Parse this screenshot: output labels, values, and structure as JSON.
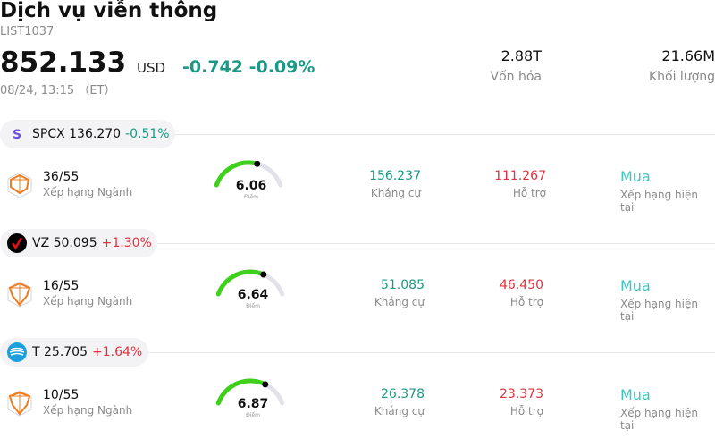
{
  "header": {
    "title": "Dịch vụ viễn thông",
    "code": "LIST1037",
    "price": "852.133",
    "currency": "USD",
    "change": "-0.742 -0.09%",
    "time": "08/24, 13:15 （ET）",
    "market_cap_value": "2.88T",
    "market_cap_label": "Vốn hóa",
    "volume_value": "21.66M",
    "volume_label": "Khối lượng"
  },
  "colors": {
    "down": "#1a9a84",
    "up": "#e0333f",
    "buy": "#3cc7c3",
    "gauge_fill": "#3fd11a",
    "gauge_track": "#e2e2ea"
  },
  "stocks": [
    {
      "ticker_line": "SPCX 136.270",
      "change": "-0.51%",
      "logo": "spcx-logo-icon",
      "rank": "36/55",
      "rank_label": "Xếp hạng Ngành",
      "score": "6.06",
      "score_fraction": 0.606,
      "score_label": "Điểm",
      "resistance": "156.237",
      "resistance_label": "Kháng cự",
      "support": "111.267",
      "support_label": "Hỗ trợ",
      "rating": "Mua",
      "rating_label": "Xếp hạng hiện tại"
    },
    {
      "ticker_line": "VZ 50.095",
      "change": "+1.30%",
      "logo": "verizon-logo-icon",
      "rank": "16/55",
      "rank_label": "Xếp hạng Ngành",
      "score": "6.64",
      "score_fraction": 0.664,
      "score_label": "Điểm",
      "resistance": "51.085",
      "resistance_label": "Kháng cự",
      "support": "46.450",
      "support_label": "Hỗ trợ",
      "rating": "Mua",
      "rating_label": "Xếp hạng hiện tại"
    },
    {
      "ticker_line": "T 25.705",
      "change": "+1.64%",
      "logo": "att-logo-icon",
      "rank": "10/55",
      "rank_label": "Xếp hạng Ngành",
      "score": "6.87",
      "score_fraction": 0.687,
      "score_label": "Điểm",
      "resistance": "26.378",
      "resistance_label": "Kháng cự",
      "support": "23.373",
      "support_label": "Hỗ trợ",
      "rating": "Mua",
      "rating_label": "Xếp hạng hiện tại"
    }
  ]
}
